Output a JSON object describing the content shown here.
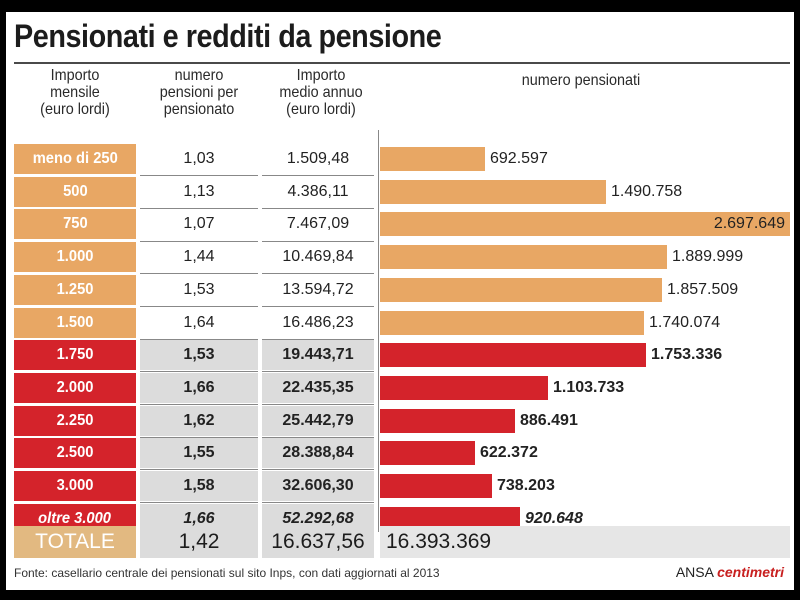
{
  "title": "Pensionati e redditi da pensione",
  "headers": {
    "col1": [
      "Importo",
      "mensile",
      "(euro lordi)"
    ],
    "col2": [
      "numero",
      "pensioni per",
      "pensionato"
    ],
    "col3": [
      "Importo",
      "medio annuo",
      "(euro lordi)"
    ],
    "col4": "numero pensionati"
  },
  "chart_data": {
    "type": "bar",
    "orientation": "horizontal",
    "title": "Pensionati e redditi da pensione",
    "categories": [
      "meno di 250",
      "500",
      "750",
      "1.000",
      "1.250",
      "1.500",
      "1.750",
      "2.000",
      "2.250",
      "2.500",
      "3.000",
      "oltre 3.000"
    ],
    "values": [
      692597,
      1490758,
      2697649,
      1889999,
      1857509,
      1740074,
      1753336,
      1103733,
      886491,
      622372,
      738203,
      920648
    ],
    "value_labels": [
      "692.597",
      "1.490.758",
      "2.697.649",
      "1.889.999",
      "1.857.509",
      "1.740.074",
      "1.753.336",
      "1.103.733",
      "886.491",
      "622.372",
      "738.203",
      "920.648"
    ],
    "pensions_per_pensioner": [
      "1,03",
      "1,13",
      "1,07",
      "1,44",
      "1,53",
      "1,64",
      "1,53",
      "1,66",
      "1,62",
      "1,55",
      "1,58",
      "1,66"
    ],
    "avg_annual_amount": [
      "1.509,48",
      "4.386,11",
      "7.467,09",
      "10.469,84",
      "13.594,72",
      "16.486,23",
      "19.443,71",
      "22.435,35",
      "25.442,79",
      "28.388,84",
      "32.606,30",
      "52.292,68"
    ],
    "group": [
      "orange",
      "orange",
      "orange",
      "orange",
      "orange",
      "orange",
      "red",
      "red",
      "red",
      "red",
      "red",
      "red"
    ],
    "xlim": [
      0,
      2700000
    ],
    "xlabel": "numero pensionati",
    "colors": {
      "orange": "#e8a764",
      "red": "#d4232b"
    }
  },
  "total": {
    "label": "TOTALE",
    "pensions_per_pensioner": "1,42",
    "avg_annual_amount": "16.637,56",
    "pensioners": "16.393.369"
  },
  "footer": "Fonte: casellario centrale dei pensionati sul sito Inps, con dati aggiornati al 2013",
  "credit": {
    "agency": "ANSA",
    "brand": "centimetri"
  }
}
